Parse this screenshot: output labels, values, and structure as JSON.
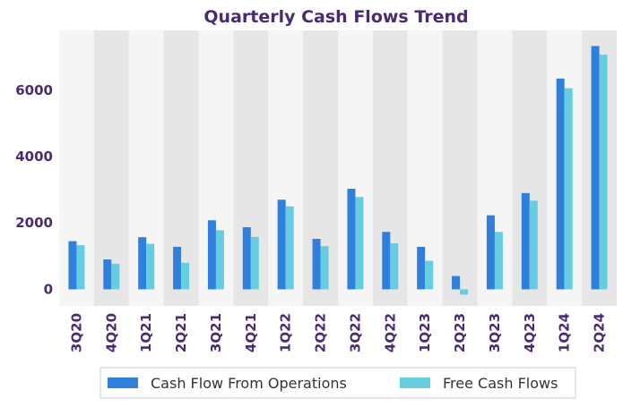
{
  "chart_data": {
    "type": "bar",
    "title": "Quarterly Cash Flows Trend",
    "xlabel": "",
    "ylabel": "",
    "categories": [
      "3Q20",
      "4Q20",
      "1Q21",
      "2Q21",
      "3Q21",
      "4Q21",
      "1Q22",
      "2Q22",
      "3Q22",
      "4Q22",
      "1Q23",
      "2Q23",
      "3Q23",
      "4Q23",
      "1Q24",
      "2Q24"
    ],
    "series": [
      {
        "name": "Cash Flow From Operations",
        "color": "#2f80dc",
        "values": [
          1450,
          900,
          1570,
          1280,
          2080,
          1870,
          2700,
          1520,
          3030,
          1730,
          1280,
          400,
          2230,
          2900,
          6350,
          7330
        ]
      },
      {
        "name": "Free Cash Flows",
        "color": "#66cde0",
        "values": [
          1330,
          770,
          1370,
          800,
          1780,
          1580,
          2500,
          1300,
          2780,
          1390,
          860,
          -160,
          1730,
          2670,
          6060,
          7070
        ]
      }
    ],
    "ylim": [
      -500,
      7800
    ],
    "yticks": [
      0,
      2000,
      4000,
      6000
    ],
    "grid": false,
    "band_colors": [
      "#f5f5f5",
      "#e6e6e6"
    ],
    "legend_position": "bottom"
  }
}
